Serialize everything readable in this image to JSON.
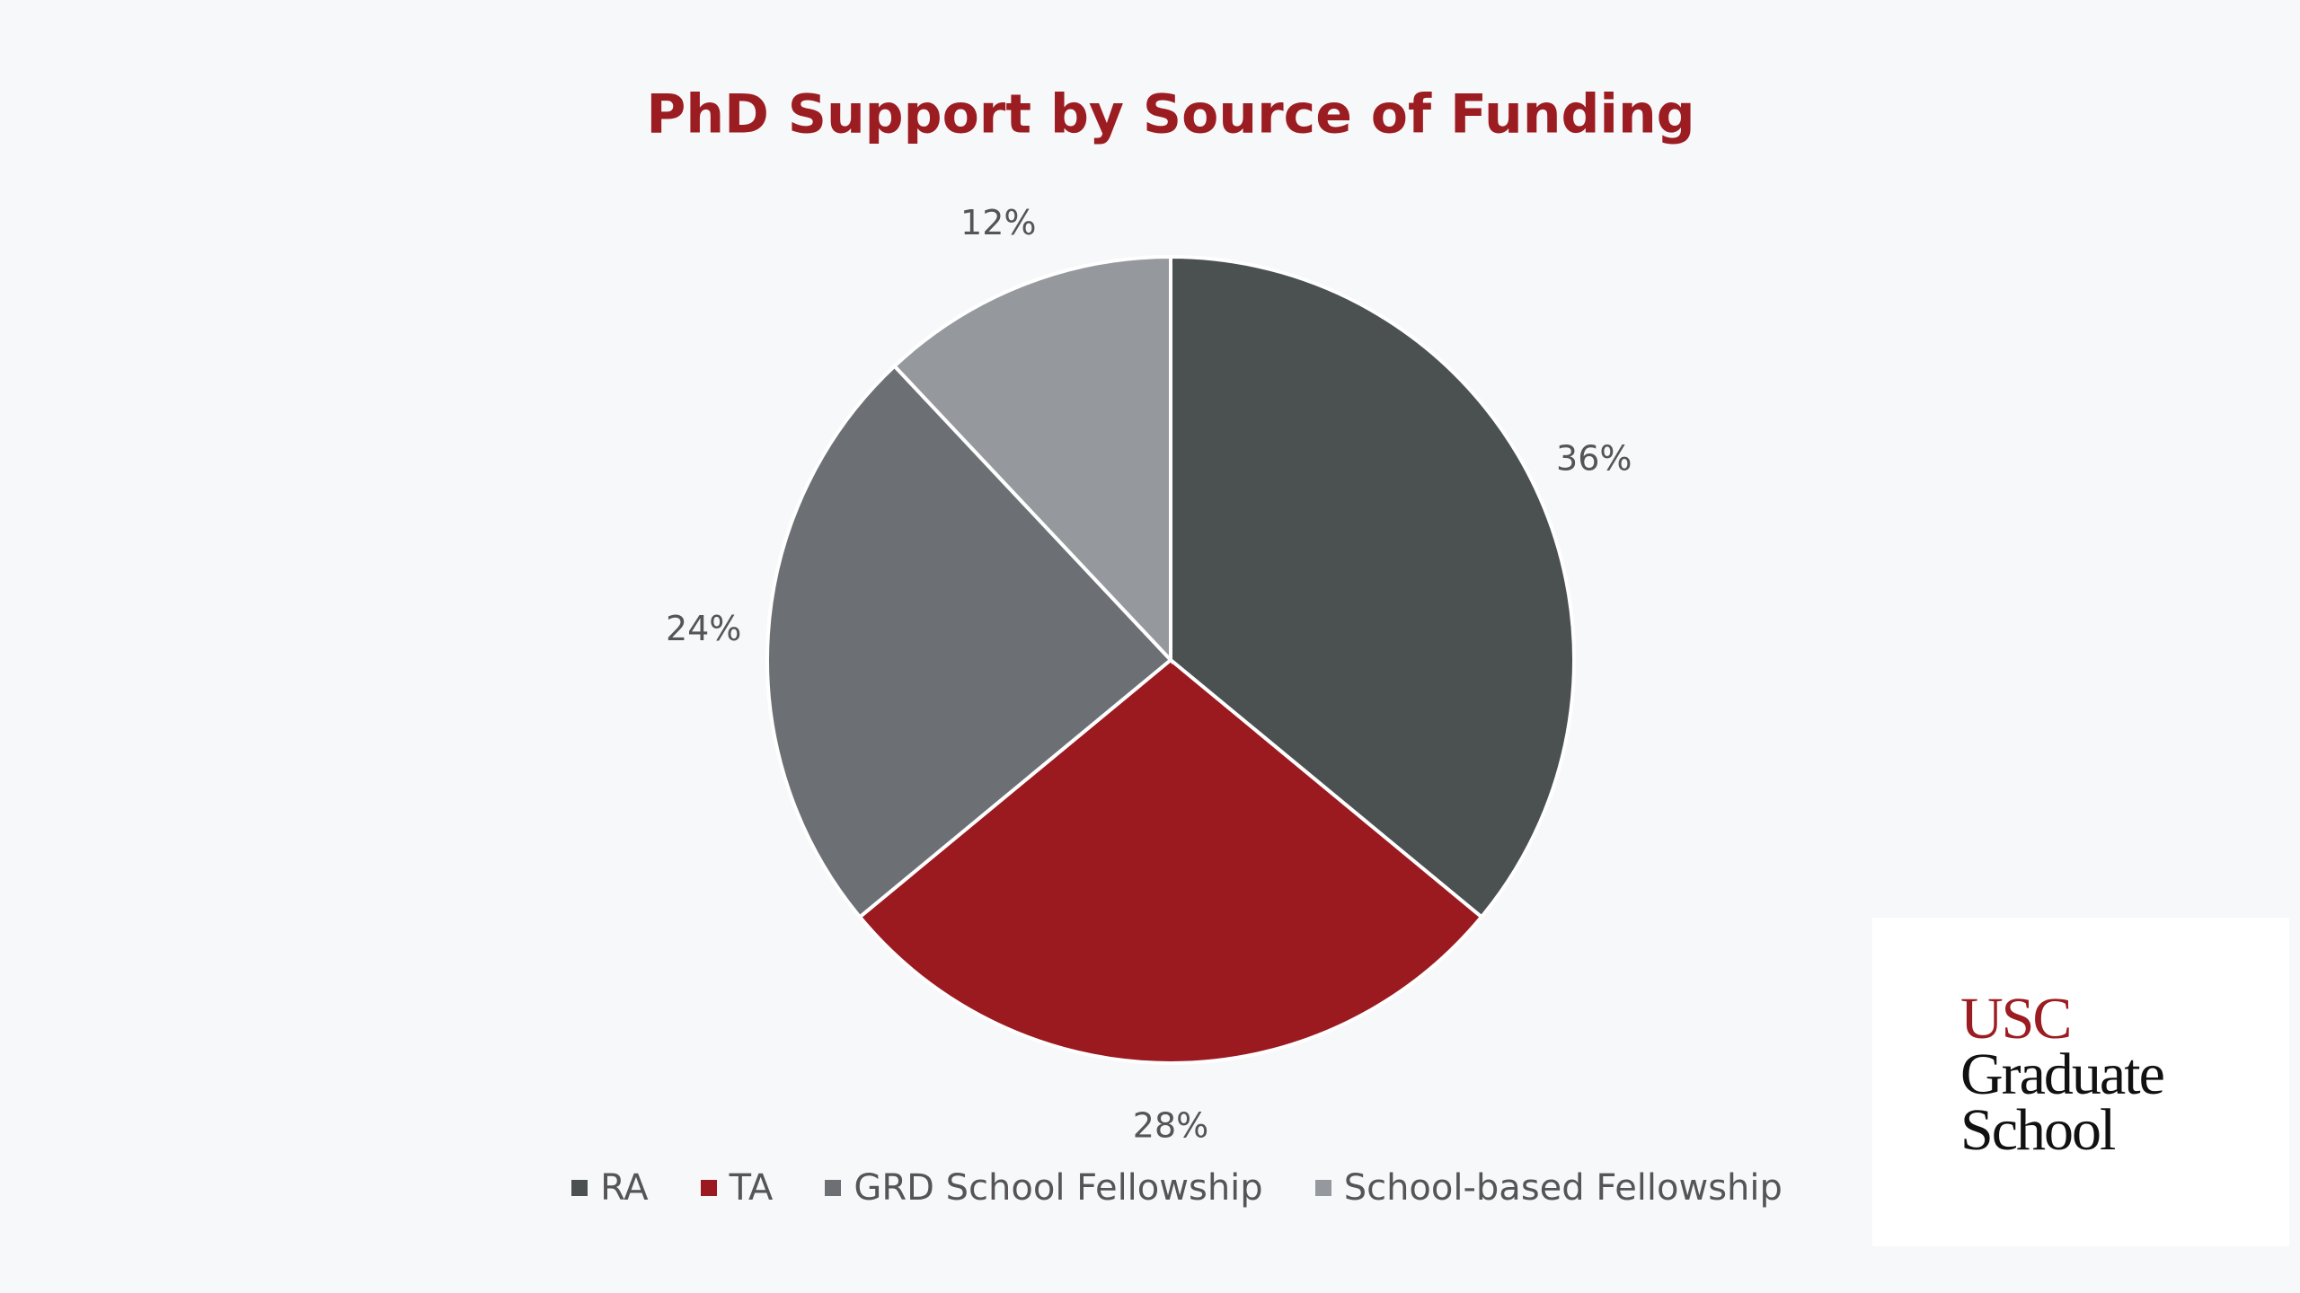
{
  "chart_data": {
    "type": "pie",
    "title": "PhD Support by Source of Funding",
    "categories": [
      "RA",
      "TA",
      "GRD School Fellowship",
      "School-based Fellowship"
    ],
    "values": [
      36,
      28,
      24,
      12
    ],
    "value_labels": [
      "36%",
      "28%",
      "24%",
      "12%"
    ],
    "colors": [
      "#4a5150",
      "#9a1a20",
      "#6c7075",
      "#95989d"
    ],
    "legend": "bottom"
  },
  "logo": {
    "lines": [
      "USC",
      "Graduate",
      "School"
    ]
  }
}
